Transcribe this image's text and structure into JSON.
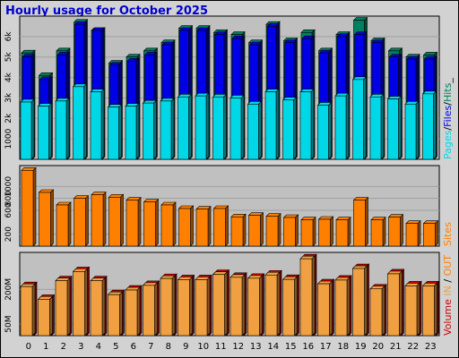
{
  "title": "Hourly usage for October 2025",
  "colors": {
    "pages": "#00d8e8",
    "files": "#0000e8",
    "hits": "#008060",
    "sites": "#ff8000",
    "volume_in": "#f0a040",
    "volume_out": "#d00000",
    "separator": "#000000"
  },
  "chart_data": [
    {
      "type": "bar",
      "title": "Hourly usage for October 2025",
      "categories": [
        "0",
        "1",
        "2",
        "3",
        "4",
        "5",
        "6",
        "7",
        "8",
        "9",
        "10",
        "11",
        "12",
        "13",
        "14",
        "15",
        "16",
        "17",
        "18",
        "19",
        "20",
        "21",
        "22",
        "23"
      ],
      "ylabel_parts": [
        "Pages",
        "/",
        "Files",
        "/",
        "Hits",
        "_"
      ],
      "yticks": [
        "1000",
        "2k",
        "3k",
        "4k",
        "5k",
        "6k"
      ],
      "series": [
        {
          "name": "Hits",
          "values": [
            5200,
            4100,
            5300,
            6700,
            6300,
            4700,
            5000,
            5300,
            5700,
            6400,
            6400,
            6200,
            6100,
            5700,
            6600,
            5800,
            6200,
            5300,
            6100,
            6800,
            5800,
            5300,
            5000,
            5100
          ]
        },
        {
          "name": "Files",
          "values": [
            5000,
            3900,
            5100,
            6600,
            6300,
            4600,
            4800,
            5100,
            5600,
            6300,
            6300,
            6100,
            5900,
            5600,
            6500,
            5700,
            5900,
            5200,
            6000,
            6100,
            5700,
            5000,
            4900,
            4900
          ]
        },
        {
          "name": "Pages",
          "values": [
            2800,
            2600,
            2850,
            3550,
            3300,
            2550,
            2600,
            2750,
            2850,
            3050,
            3100,
            3050,
            3000,
            2700,
            3300,
            2900,
            3300,
            2650,
            3100,
            3900,
            3050,
            2950,
            2700,
            3200
          ]
        }
      ]
    },
    {
      "type": "bar",
      "categories": [
        "0",
        "1",
        "2",
        "3",
        "4",
        "5",
        "6",
        "7",
        "8",
        "9",
        "10",
        "11",
        "12",
        "13",
        "14",
        "15",
        "16",
        "17",
        "18",
        "19",
        "20",
        "21",
        "22",
        "23"
      ],
      "ylabel": "Sites",
      "yticks": [
        "200",
        "600",
        "800",
        "1000"
      ],
      "series": [
        {
          "name": "Sites",
          "values": [
            1270,
            900,
            690,
            800,
            860,
            820,
            770,
            740,
            690,
            630,
            620,
            630,
            490,
            515,
            500,
            480,
            440,
            450,
            440,
            770,
            440,
            485,
            380,
            380
          ]
        }
      ]
    },
    {
      "type": "bar",
      "categories": [
        "0",
        "1",
        "2",
        "3",
        "4",
        "5",
        "6",
        "7",
        "8",
        "9",
        "10",
        "11",
        "12",
        "13",
        "14",
        "15",
        "16",
        "17",
        "18",
        "19",
        "20",
        "21",
        "22",
        "23"
      ],
      "ylabel_parts": [
        "Volume",
        "IN",
        "OUT"
      ],
      "yticks": [
        "50M",
        "200M"
      ],
      "series": [
        {
          "name": "Volume",
          "values": [
            220,
            165,
            245,
            285,
            245,
            185,
            205,
            225,
            255,
            250,
            250,
            272,
            260,
            256,
            270,
            251,
            340,
            232,
            248,
            298,
            210,
            275,
            223,
            223
          ]
        }
      ]
    }
  ]
}
